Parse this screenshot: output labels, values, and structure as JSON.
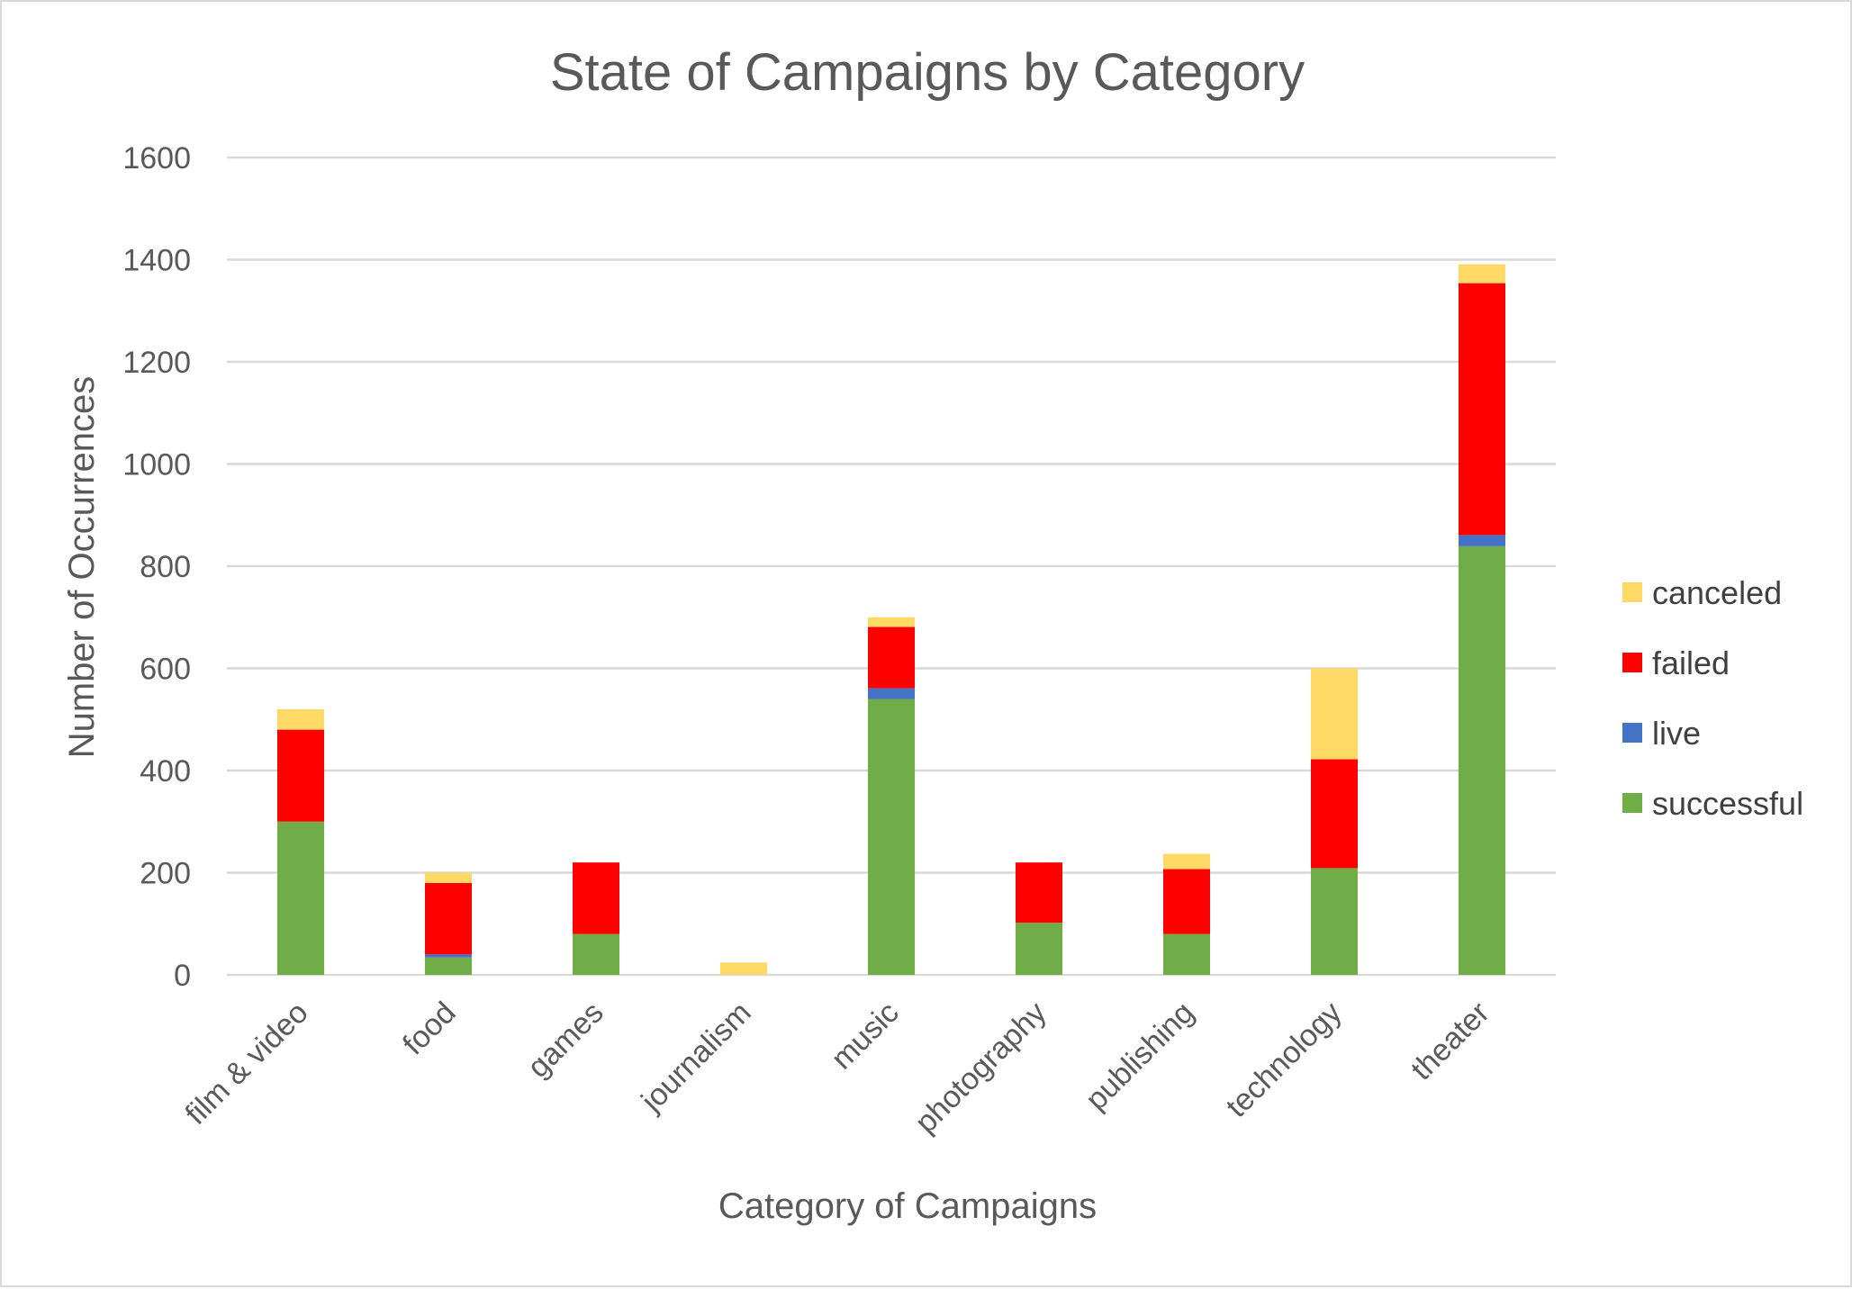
{
  "chart_data": {
    "type": "bar",
    "stacked": true,
    "title": "State of Campaigns by Category",
    "xlabel": "Category of Campaigns",
    "ylabel": "Number of Occurrences",
    "ylim": [
      0,
      1600
    ],
    "yticks": [
      0,
      200,
      400,
      600,
      800,
      1000,
      1200,
      1400,
      1600
    ],
    "grid": true,
    "legend_position": "right",
    "categories": [
      "film & video",
      "food",
      "games",
      "journalism",
      "music",
      "photography",
      "publishing",
      "technology",
      "theater"
    ],
    "series": [
      {
        "name": "successful",
        "color": "#70ad47",
        "values": [
          300,
          34,
          80,
          0,
          540,
          102,
          80,
          209,
          839
        ]
      },
      {
        "name": "live",
        "color": "#4472c4",
        "values": [
          0,
          6,
          0,
          0,
          21,
          0,
          0,
          0,
          22
        ]
      },
      {
        "name": "failed",
        "color": "#ff0000",
        "values": [
          180,
          140,
          140,
          0,
          120,
          118,
          127,
          213,
          493
        ]
      },
      {
        "name": "canceled",
        "color": "#ffd966",
        "values": [
          40,
          20,
          0,
          24,
          19,
          0,
          30,
          178,
          37
        ]
      }
    ],
    "legend_order": [
      "canceled",
      "failed",
      "live",
      "successful"
    ]
  }
}
